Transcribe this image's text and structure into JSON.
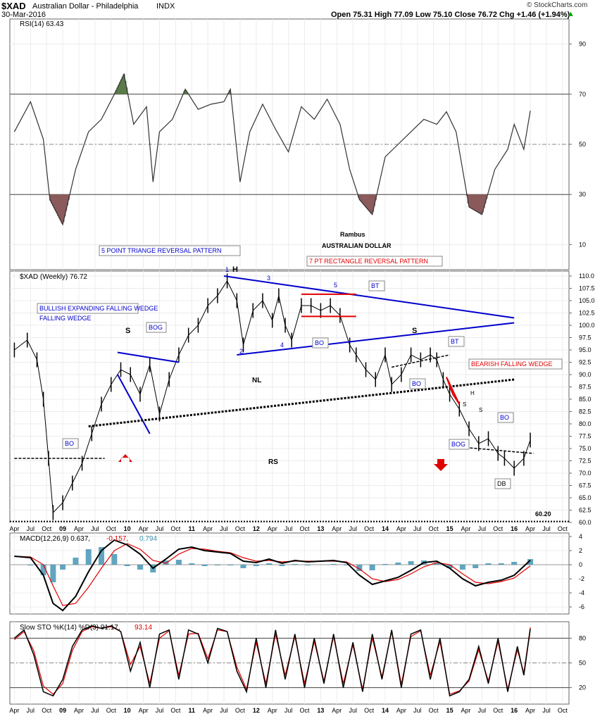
{
  "header": {
    "symbol": "$XAD",
    "name": "Australian Dollar - Philadelphia",
    "exchange": "INDX",
    "date": "30-Mar-2016",
    "ohlc": "Open 75.31  High 77.09  Low 75.10  Close 76.72  Chg +1.46 (+1.94%)",
    "chg_arrow": "▲",
    "watermark": "© StockCharts.com"
  },
  "colors": {
    "price": "#000000",
    "rsi_fill": "#8b5a5a",
    "rsi_over": "#5a7a4a",
    "blue": "#0000cc",
    "red": "#e00000",
    "macd_hist": "#3a8fb0",
    "sto_d": "#dd0000"
  },
  "chart_data": [
    {
      "type": "line",
      "panel": "rsi",
      "label": "RSI(14) 63.43",
      "ylim": [
        0,
        100
      ],
      "yticks": [
        10,
        30,
        50,
        70,
        90
      ],
      "reference_lines": [
        30,
        50,
        70
      ],
      "x": [
        2008.25,
        2008.5,
        2008.7,
        2008.8,
        2009.0,
        2009.2,
        2009.4,
        2009.6,
        2009.8,
        2009.95,
        2010.1,
        2010.3,
        2010.4,
        2010.5,
        2010.7,
        2010.9,
        2011.1,
        2011.3,
        2011.5,
        2011.6,
        2011.75,
        2011.9,
        2012.1,
        2012.3,
        2012.5,
        2012.7,
        2012.9,
        2013.1,
        2013.3,
        2013.45,
        2013.6,
        2013.8,
        2014.0,
        2014.2,
        2014.4,
        2014.6,
        2014.8,
        2014.95,
        2015.1,
        2015.3,
        2015.5,
        2015.7,
        2015.9,
        2016.0,
        2016.15,
        2016.25
      ],
      "values": [
        55,
        67,
        52,
        28,
        18,
        40,
        55,
        60,
        70,
        78,
        58,
        65,
        35,
        55,
        60,
        72,
        64,
        66,
        67,
        72,
        35,
        55,
        66,
        56,
        47,
        65,
        60,
        68,
        58,
        40,
        28,
        22,
        45,
        50,
        55,
        60,
        58,
        63,
        55,
        25,
        22,
        40,
        48,
        58,
        48,
        63.43
      ]
    },
    {
      "type": "line",
      "panel": "price",
      "label": "$XAD (Weekly) 76.72",
      "ylim": [
        60,
        111
      ],
      "yticks": [
        60.0,
        62.5,
        65.0,
        67.5,
        70.0,
        72.5,
        75.0,
        77.5,
        80.0,
        82.5,
        85.0,
        87.5,
        90.0,
        92.5,
        95.0,
        97.5,
        100.0,
        102.5,
        105.0,
        107.5,
        110.0
      ],
      "x": [
        2008.25,
        2008.45,
        2008.6,
        2008.7,
        2008.78,
        2008.85,
        2009.0,
        2009.15,
        2009.3,
        2009.45,
        2009.6,
        2009.75,
        2009.9,
        2010.05,
        2010.2,
        2010.35,
        2010.5,
        2010.65,
        2010.8,
        2010.95,
        2011.1,
        2011.25,
        2011.4,
        2011.55,
        2011.7,
        2011.8,
        2011.95,
        2012.1,
        2012.25,
        2012.35,
        2012.45,
        2012.55,
        2012.7,
        2012.85,
        2013.0,
        2013.15,
        2013.3,
        2013.45,
        2013.55,
        2013.7,
        2013.85,
        2014.0,
        2014.1,
        2014.25,
        2014.4,
        2014.55,
        2014.7,
        2014.8,
        2014.9,
        2015.0,
        2015.15,
        2015.3,
        2015.45,
        2015.6,
        2015.75,
        2015.85,
        2016.0,
        2016.15,
        2016.25
      ],
      "values": [
        95,
        97,
        93,
        85,
        73,
        62,
        64,
        68,
        72,
        78,
        84,
        88,
        91,
        90,
        86,
        92,
        82,
        89,
        94,
        98,
        100,
        104,
        106,
        109,
        105,
        96,
        103,
        105,
        101,
        106,
        100,
        97,
        104,
        104,
        103,
        104,
        102,
        96,
        94,
        91,
        89,
        94,
        88,
        90,
        94,
        93,
        94,
        93,
        89,
        86,
        83,
        79,
        76,
        77,
        74,
        73,
        71,
        73,
        76.72
      ],
      "annotations": [
        "5 POINT TRIANGE REVERSAL PATTERN",
        "BULLISH EXPANDING FALLING WEDGE",
        "7 PT RECTANGLE REVERSAL PATTERN",
        "BEARISH FALLING WEDGE",
        "Rambus",
        "AUSTRALIAN DOLLAR",
        "NL",
        "RS",
        "H",
        "S",
        "S",
        "BO",
        "BOG",
        "BT",
        "BO",
        "BT",
        "BO",
        "BOG",
        "BO",
        "DB",
        "1",
        "2",
        "3",
        "4",
        "5",
        "H",
        "S",
        "S",
        "60.20"
      ]
    },
    {
      "type": "line",
      "panel": "macd",
      "label": "MACD(12,26,9) 0.637, -0.157, 0.794",
      "label_parts": [
        "MACD(12,26,9) 0.637,",
        "-0.157,",
        "0.794"
      ],
      "ylim": [
        -7,
        4.5
      ],
      "yticks": [
        -6,
        -4,
        -2,
        0,
        2,
        4
      ],
      "x": [
        2008.25,
        2008.5,
        2008.7,
        2008.85,
        2009.0,
        2009.2,
        2009.4,
        2009.6,
        2009.8,
        2010.0,
        2010.2,
        2010.4,
        2010.6,
        2010.8,
        2011.0,
        2011.2,
        2011.4,
        2011.6,
        2011.8,
        2012.0,
        2012.2,
        2012.4,
        2012.6,
        2012.8,
        2013.0,
        2013.2,
        2013.4,
        2013.6,
        2013.8,
        2014.0,
        2014.2,
        2014.4,
        2014.6,
        2014.8,
        2015.0,
        2015.2,
        2015.4,
        2015.6,
        2015.8,
        2016.0,
        2016.25
      ],
      "values": [
        1.2,
        1.0,
        -1.5,
        -5.5,
        -6.5,
        -4.5,
        -1.0,
        2.0,
        3.5,
        2.8,
        1.5,
        -0.5,
        0.8,
        2.2,
        2.5,
        2.0,
        1.8,
        1.6,
        0.5,
        0.3,
        0.8,
        0.2,
        0.6,
        0.4,
        0.5,
        0.6,
        0.3,
        -1.5,
        -2.8,
        -2.3,
        -1.8,
        -0.8,
        0.3,
        0.5,
        -0.5,
        -2.0,
        -3.0,
        -2.5,
        -2.2,
        -1.5,
        0.637
      ],
      "signal": [
        1.2,
        1.1,
        0.0,
        -3.0,
        -5.8,
        -5.5,
        -3.2,
        -0.5,
        2.0,
        3.0,
        2.2,
        0.6,
        0.2,
        1.5,
        2.3,
        2.2,
        1.9,
        1.7,
        1.0,
        0.5,
        0.6,
        0.4,
        0.5,
        0.5,
        0.5,
        0.5,
        0.4,
        -0.6,
        -2.0,
        -2.4,
        -2.1,
        -1.3,
        -0.3,
        0.3,
        0.0,
        -1.3,
        -2.5,
        -2.7,
        -2.4,
        -1.9,
        -0.157
      ],
      "histogram_value": 0.794
    },
    {
      "type": "line",
      "panel": "sto",
      "label": "Slow STO %K(14) %D(3) 91.17,",
      "label_d": "93.14",
      "ylim": [
        0,
        100
      ],
      "yticks": [
        20,
        50,
        80
      ],
      "reference_lines": [
        20,
        50,
        80
      ],
      "x": [
        2008.25,
        2008.4,
        2008.55,
        2008.7,
        2008.85,
        2009.0,
        2009.15,
        2009.3,
        2009.45,
        2009.6,
        2009.75,
        2009.9,
        2010.05,
        2010.2,
        2010.35,
        2010.5,
        2010.65,
        2010.8,
        2010.95,
        2011.1,
        2011.25,
        2011.4,
        2011.55,
        2011.7,
        2011.85,
        2012.0,
        2012.15,
        2012.3,
        2012.45,
        2012.6,
        2012.75,
        2012.9,
        2013.05,
        2013.2,
        2013.35,
        2013.5,
        2013.65,
        2013.8,
        2013.95,
        2014.1,
        2014.25,
        2014.4,
        2014.55,
        2014.7,
        2014.85,
        2015.0,
        2015.15,
        2015.3,
        2015.45,
        2015.6,
        2015.75,
        2015.9,
        2016.05,
        2016.15,
        2016.25
      ],
      "values": [
        80,
        90,
        60,
        15,
        10,
        30,
        70,
        90,
        95,
        92,
        95,
        88,
        40,
        75,
        20,
        85,
        90,
        30,
        90,
        85,
        50,
        92,
        88,
        40,
        15,
        80,
        20,
        90,
        30,
        85,
        20,
        80,
        25,
        85,
        20,
        75,
        15,
        85,
        30,
        90,
        20,
        85,
        90,
        30,
        80,
        10,
        15,
        30,
        70,
        25,
        80,
        15,
        70,
        35,
        91.17
      ],
      "signal": [
        78,
        88,
        65,
        22,
        12,
        25,
        65,
        88,
        94,
        92,
        94,
        88,
        48,
        70,
        25,
        80,
        89,
        35,
        85,
        86,
        55,
        90,
        88,
        45,
        18,
        75,
        25,
        85,
        35,
        82,
        25,
        76,
        28,
        82,
        25,
        72,
        18,
        80,
        33,
        88,
        24,
        82,
        89,
        35,
        76,
        12,
        16,
        28,
        66,
        28,
        76,
        18,
        66,
        38,
        93.14
      ]
    }
  ],
  "x_axis": {
    "ticks": [
      {
        "t": 2008.25,
        "label": "Apr"
      },
      {
        "t": 2008.5,
        "label": "Jul"
      },
      {
        "t": 2008.75,
        "label": "Oct"
      },
      {
        "t": 2009.0,
        "label": "09"
      },
      {
        "t": 2009.25,
        "label": "Apr"
      },
      {
        "t": 2009.5,
        "label": "Jul"
      },
      {
        "t": 2009.75,
        "label": "Oct"
      },
      {
        "t": 2010.0,
        "label": "10"
      },
      {
        "t": 2010.25,
        "label": "Apr"
      },
      {
        "t": 2010.5,
        "label": "Jul"
      },
      {
        "t": 2010.75,
        "label": "Oct"
      },
      {
        "t": 2011.0,
        "label": "11"
      },
      {
        "t": 2011.25,
        "label": "Apr"
      },
      {
        "t": 2011.5,
        "label": "Jul"
      },
      {
        "t": 2011.75,
        "label": "Oct"
      },
      {
        "t": 2012.0,
        "label": "12"
      },
      {
        "t": 2012.25,
        "label": "Apr"
      },
      {
        "t": 2012.5,
        "label": "Jul"
      },
      {
        "t": 2012.75,
        "label": "Oct"
      },
      {
        "t": 2013.0,
        "label": "13"
      },
      {
        "t": 2013.25,
        "label": "Apr"
      },
      {
        "t": 2013.5,
        "label": "Jul"
      },
      {
        "t": 2013.75,
        "label": "Oct"
      },
      {
        "t": 2014.0,
        "label": "14"
      },
      {
        "t": 2014.25,
        "label": "Apr"
      },
      {
        "t": 2014.5,
        "label": "Jul"
      },
      {
        "t": 2014.75,
        "label": "Oct"
      },
      {
        "t": 2015.0,
        "label": "15"
      },
      {
        "t": 2015.25,
        "label": "Apr"
      },
      {
        "t": 2015.5,
        "label": "Jul"
      },
      {
        "t": 2015.75,
        "label": "Oct"
      },
      {
        "t": 2016.0,
        "label": "16"
      },
      {
        "t": 2016.25,
        "label": "Apr"
      },
      {
        "t": 2016.5,
        "label": "Jul"
      },
      {
        "t": 2016.75,
        "label": "Oct"
      }
    ]
  }
}
